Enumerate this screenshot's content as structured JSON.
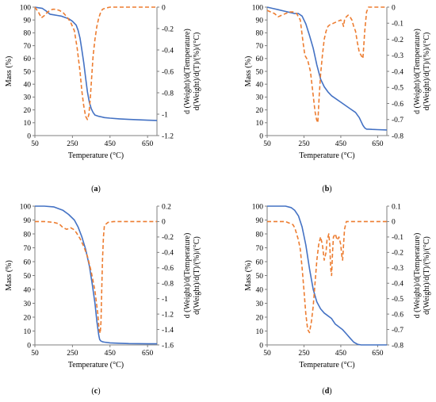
{
  "chart_data": [
    {
      "type": "line",
      "caption_letter": "a",
      "xlabel": "Temperature (°C)",
      "ylabel_left": "Mass (%)",
      "ylabel_right": [
        "d (Weight)/d(Temperature)",
        "d(Weight)/d(T)/(%)/(°C)"
      ],
      "xlim": [
        50,
        700
      ],
      "xticks": [
        50,
        250,
        450,
        650
      ],
      "ylim_left": [
        0,
        100
      ],
      "yticks_left": [
        0,
        10,
        20,
        30,
        40,
        50,
        60,
        70,
        80,
        90,
        100
      ],
      "ylim_right": [
        -1.2,
        0
      ],
      "yticks_right": [
        "0",
        "-0.2",
        "-0.4",
        "-0.6",
        "-0.8",
        "-1",
        "-1.2"
      ],
      "series": [
        {
          "axis": "left",
          "color": "#4472c4",
          "style": "solid",
          "x": [
            50,
            70,
            90,
            110,
            130,
            150,
            170,
            190,
            210,
            230,
            250,
            270,
            280,
            290,
            300,
            310,
            320,
            330,
            340,
            350,
            360,
            370,
            390,
            420,
            450,
            500,
            550,
            600,
            650,
            700
          ],
          "y": [
            100,
            99.5,
            99,
            97,
            94.5,
            94,
            93.5,
            93,
            92,
            91,
            89,
            86,
            82,
            76,
            67,
            57,
            45,
            34,
            26,
            21,
            18,
            16,
            15,
            14,
            13.6,
            13,
            12.6,
            12.3,
            12,
            11.8
          ]
        },
        {
          "axis": "right",
          "color": "#ed7d31",
          "style": "dashed",
          "x": [
            50,
            70,
            85,
            100,
            115,
            130,
            145,
            160,
            180,
            200,
            220,
            240,
            260,
            275,
            290,
            300,
            310,
            320,
            330,
            338,
            345,
            352,
            360,
            370,
            380,
            390,
            400,
            410,
            425,
            450,
            500,
            550,
            600,
            650,
            700
          ],
          "y": [
            0,
            -0.05,
            -0.1,
            -0.08,
            -0.05,
            -0.03,
            -0.02,
            -0.02,
            -0.03,
            -0.05,
            -0.09,
            -0.14,
            -0.22,
            -0.38,
            -0.6,
            -0.78,
            -0.92,
            -1.02,
            -1.05,
            -1.0,
            -0.85,
            -0.66,
            -0.46,
            -0.3,
            -0.18,
            -0.1,
            -0.05,
            -0.02,
            -0.01,
            0,
            0,
            0,
            0,
            0,
            0
          ]
        }
      ]
    },
    {
      "type": "line",
      "caption_letter": "b",
      "xlabel": "Temperature (°C)",
      "ylabel_left": "Mass (%)",
      "ylabel_right": [
        "d (Weight)/d(Temperature)",
        "d(Weight)/d(T)/(%)/(°C)"
      ],
      "xlim": [
        50,
        700
      ],
      "xticks": [
        50,
        250,
        450,
        650
      ],
      "ylim_left": [
        0,
        100
      ],
      "yticks_left": [
        0,
        10,
        20,
        30,
        40,
        50,
        60,
        70,
        80,
        90,
        100
      ],
      "ylim_right": [
        -0.8,
        0
      ],
      "yticks_right": [
        "0",
        "-0.1",
        "-0.2",
        "-0.3",
        "-0.4",
        "-0.5",
        "-0.6",
        "-0.7",
        "-0.8"
      ],
      "series": [
        {
          "axis": "left",
          "color": "#4472c4",
          "style": "solid",
          "x": [
            50,
            80,
            110,
            140,
            170,
            200,
            220,
            240,
            260,
            280,
            300,
            320,
            340,
            360,
            380,
            400,
            450,
            500,
            530,
            550,
            560,
            570,
            580,
            590,
            600,
            620,
            650,
            700
          ],
          "y": [
            100,
            99,
            98,
            97,
            96,
            95,
            95,
            93,
            87,
            78,
            68,
            55,
            44,
            38,
            34,
            31,
            26,
            21,
            18,
            14,
            11,
            8,
            6,
            5,
            5,
            4.8,
            4.6,
            4.4
          ]
        },
        {
          "axis": "right",
          "color": "#ed7d31",
          "style": "dashed",
          "x": [
            50,
            70,
            90,
            110,
            130,
            150,
            170,
            190,
            210,
            230,
            245,
            255,
            270,
            285,
            300,
            310,
            318,
            325,
            333,
            340,
            350,
            360,
            370,
            380,
            390,
            410,
            430,
            450,
            460,
            465,
            470,
            480,
            490,
            500,
            510,
            520,
            530,
            540,
            550,
            560,
            570,
            580,
            590,
            600,
            620,
            650,
            700
          ],
          "y": [
            -0.02,
            -0.03,
            -0.04,
            -0.06,
            -0.05,
            -0.04,
            -0.03,
            -0.03,
            -0.04,
            -0.08,
            -0.22,
            -0.3,
            -0.33,
            -0.4,
            -0.55,
            -0.65,
            -0.7,
            -0.72,
            -0.55,
            -0.42,
            -0.3,
            -0.2,
            -0.15,
            -0.12,
            -0.11,
            -0.1,
            -0.09,
            -0.08,
            -0.1,
            -0.12,
            -0.08,
            -0.06,
            -0.05,
            -0.06,
            -0.08,
            -0.12,
            -0.15,
            -0.22,
            -0.28,
            -0.3,
            -0.32,
            -0.15,
            -0.03,
            0,
            0,
            0,
            0
          ]
        }
      ]
    },
    {
      "type": "line",
      "caption_letter": "c",
      "xlabel": "Temperature (°C)",
      "ylabel_left": "Mass (%)",
      "ylabel_right": [
        "d (Weight)/d(Temperature)",
        "d(Weight)/d(T)/(%)/(°C)"
      ],
      "xlim": [
        50,
        700
      ],
      "xticks": [
        50,
        250,
        450,
        650
      ],
      "ylim_left": [
        0,
        100
      ],
      "yticks_left": [
        0,
        10,
        20,
        30,
        40,
        50,
        60,
        70,
        80,
        90,
        100
      ],
      "ylim_right": [
        -1.6,
        0.2
      ],
      "yticks_right": [
        "0.2",
        "0",
        "-0.2",
        "-0.4",
        "-0.6",
        "-0.8",
        "-1",
        "-1.2",
        "-1.4",
        "-1.6"
      ],
      "series": [
        {
          "axis": "left",
          "color": "#4472c4",
          "style": "solid",
          "x": [
            50,
            100,
            150,
            200,
            230,
            260,
            280,
            300,
            320,
            340,
            355,
            370,
            380,
            390,
            395,
            400,
            410,
            420,
            450,
            500,
            550,
            600,
            650,
            700
          ],
          "y": [
            100,
            100,
            99.5,
            97,
            94,
            90,
            85,
            78,
            69,
            57,
            44,
            30,
            17,
            7,
            4,
            3,
            2.2,
            2,
            1.5,
            1.2,
            1,
            0.9,
            0.8,
            0.8
          ]
        },
        {
          "axis": "right",
          "color": "#ed7d31",
          "style": "dashed",
          "x": [
            50,
            100,
            150,
            180,
            200,
            220,
            240,
            255,
            270,
            290,
            310,
            330,
            350,
            370,
            385,
            392,
            398,
            402,
            406,
            410,
            415,
            420,
            440,
            470,
            500,
            550,
            600,
            650,
            700
          ],
          "y": [
            0,
            0,
            -0.01,
            -0.03,
            -0.08,
            -0.1,
            -0.08,
            -0.1,
            -0.14,
            -0.22,
            -0.32,
            -0.45,
            -0.65,
            -0.9,
            -1.2,
            -1.4,
            -1.45,
            -1.3,
            -0.9,
            -0.5,
            -0.2,
            -0.05,
            -0.01,
            0,
            0,
            0,
            0,
            0,
            0
          ]
        }
      ]
    },
    {
      "type": "line",
      "caption_letter": "d",
      "xlabel": "Temperature (°C)",
      "ylabel_left": "Mass (%)",
      "ylabel_right": [
        "d (Weight)/d(Temperature)",
        "d(Weight)/d(T)/(%)/(°C)"
      ],
      "xlim": [
        50,
        700
      ],
      "xticks": [
        50,
        250,
        450,
        650
      ],
      "ylim_left": [
        0,
        100
      ],
      "yticks_left": [
        0,
        10,
        20,
        30,
        40,
        50,
        60,
        70,
        80,
        90,
        100
      ],
      "ylim_right": [
        -0.8,
        0.1
      ],
      "yticks_right": [
        "0.1",
        "0",
        "-0.1",
        "-0.2",
        "-0.3",
        "-0.4",
        "-0.5",
        "-0.6",
        "-0.7",
        "-0.8"
      ],
      "series": [
        {
          "axis": "left",
          "color": "#4472c4",
          "style": "solid",
          "x": [
            50,
            100,
            150,
            180,
            200,
            220,
            240,
            260,
            280,
            300,
            320,
            340,
            360,
            380,
            400,
            410,
            420,
            440,
            460,
            480,
            500,
            520,
            540,
            560,
            600,
            650,
            700
          ],
          "y": [
            100,
            100,
            100,
            99,
            97,
            93,
            85,
            72,
            55,
            40,
            31,
            26,
            23,
            21,
            19,
            17,
            15,
            13,
            11,
            8,
            5,
            2,
            0.5,
            0,
            0,
            0,
            0
          ]
        },
        {
          "axis": "right",
          "color": "#ed7d31",
          "style": "dashed",
          "x": [
            50,
            100,
            150,
            170,
            190,
            200,
            210,
            220,
            230,
            240,
            250,
            260,
            270,
            280,
            290,
            300,
            310,
            320,
            330,
            340,
            350,
            360,
            370,
            375,
            380,
            385,
            390,
            395,
            400,
            405,
            410,
            420,
            430,
            440,
            450,
            455,
            460,
            465,
            470,
            480,
            500,
            550,
            600,
            650,
            700
          ],
          "y": [
            0,
            0,
            0,
            -0.01,
            -0.02,
            -0.04,
            -0.08,
            -0.12,
            -0.18,
            -0.3,
            -0.45,
            -0.6,
            -0.7,
            -0.72,
            -0.65,
            -0.55,
            -0.4,
            -0.25,
            -0.15,
            -0.1,
            -0.15,
            -0.25,
            -0.2,
            -0.12,
            -0.1,
            -0.08,
            -0.15,
            -0.3,
            -0.35,
            -0.2,
            -0.1,
            -0.08,
            -0.12,
            -0.1,
            -0.15,
            -0.22,
            -0.25,
            -0.15,
            -0.05,
            0,
            0,
            0,
            0,
            0,
            0
          ]
        }
      ]
    }
  ]
}
